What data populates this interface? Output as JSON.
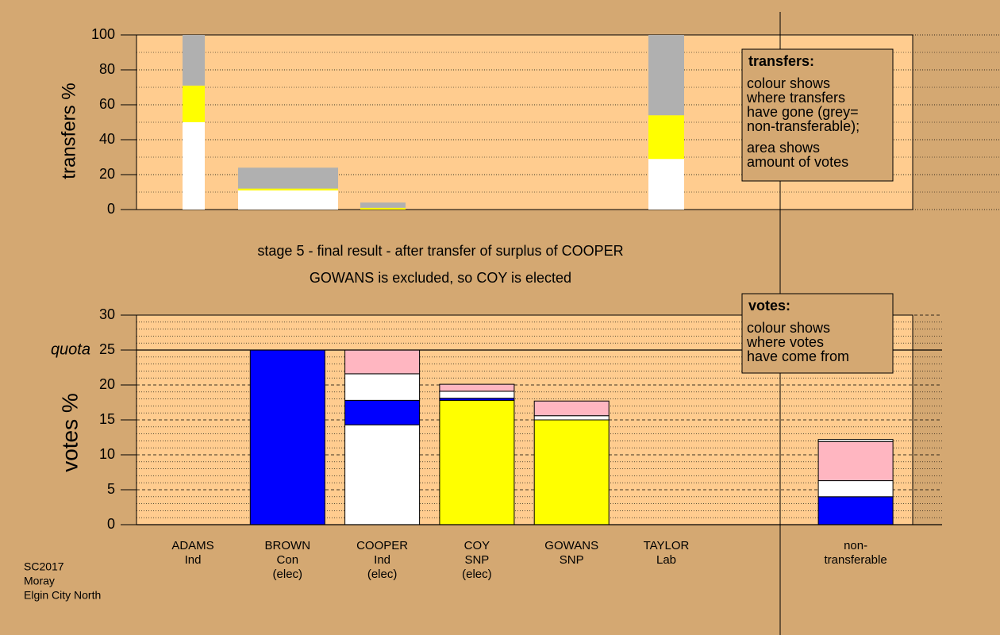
{
  "chart_data": [
    {
      "type": "bar",
      "stacked": true,
      "ylabel": "transfers %",
      "ylim": [
        0,
        100
      ],
      "yticks": [
        0,
        20,
        40,
        60,
        80,
        100
      ],
      "grid": true,
      "series": [
        {
          "color": "#ffffff",
          "values": [
            50,
            11,
            0,
            29
          ]
        },
        {
          "color": "#ffff00",
          "values": [
            21,
            1,
            1,
            25
          ]
        },
        {
          "color": "#b0b0b0",
          "values": [
            29,
            12,
            3,
            46
          ]
        }
      ],
      "note": {
        "heading": "transfers:",
        "lines": [
          "colour shows",
          "where transfers",
          "have gone (grey=",
          "non-transferable);",
          "area shows",
          "amount of votes"
        ]
      }
    },
    {
      "type": "bar",
      "stacked": true,
      "ylabel": "votes %",
      "title": "stage 5 - final result - after transfer of surplus of COOPER",
      "subtitle": "GOWANS is excluded, so COY is elected",
      "categories": [
        [
          "ADAMS",
          "Ind"
        ],
        [
          "BROWN",
          "Con",
          "(elec)"
        ],
        [
          "COOPER",
          "Ind",
          "(elec)"
        ],
        [
          "COY",
          "SNP",
          "(elec)"
        ],
        [
          "GOWANS",
          "SNP"
        ],
        [
          "TAYLOR",
          "Lab"
        ],
        null,
        [
          "non-",
          "transferable"
        ]
      ],
      "ylim": [
        0,
        30
      ],
      "yticks": [
        0,
        5,
        10,
        15,
        20,
        25,
        30
      ],
      "grid": true,
      "quota": {
        "label": "quota",
        "value": 25
      },
      "series": [
        {
          "values": [
            0,
            25,
            14.3,
            17.8,
            15,
            0,
            null,
            4
          ],
          "colors": [
            "#ffffff",
            "#0000ff",
            "#ffffff",
            "#ffff00",
            "#ffff00",
            "#ffb6c1",
            null,
            "#0000ff"
          ]
        },
        {
          "values": [
            0,
            0,
            3.5,
            0.3,
            0.6,
            0,
            null,
            2.3
          ],
          "colors": [
            "#ffffff",
            "#0000ff",
            "#0000ff",
            "#0000ff",
            "#ffffff",
            "#ffb6c1",
            null,
            "#ffffff"
          ]
        },
        {
          "values": [
            0,
            0,
            3.8,
            1,
            2.1,
            0,
            null,
            5.6
          ],
          "colors": [
            "#ffffff",
            "#ffffff",
            "#ffffff",
            "#ffffff",
            "#ffb6c1",
            "#ffb6c1",
            null,
            "#ffb6c1"
          ]
        },
        {
          "values": [
            0,
            0,
            3.4,
            1,
            0,
            0,
            null,
            0.3
          ],
          "colors": [
            "#ffb6c1",
            "#ffb6c1",
            "#ffb6c1",
            "#ffb6c1",
            "#ffb6c1",
            "#ffb6c1",
            null,
            "#ffffff"
          ]
        }
      ],
      "note": {
        "heading": "votes:",
        "lines": [
          "colour shows",
          "where votes",
          "have come from"
        ]
      }
    }
  ],
  "footer": [
    "SC2017",
    "Moray",
    "Elgin City North"
  ]
}
